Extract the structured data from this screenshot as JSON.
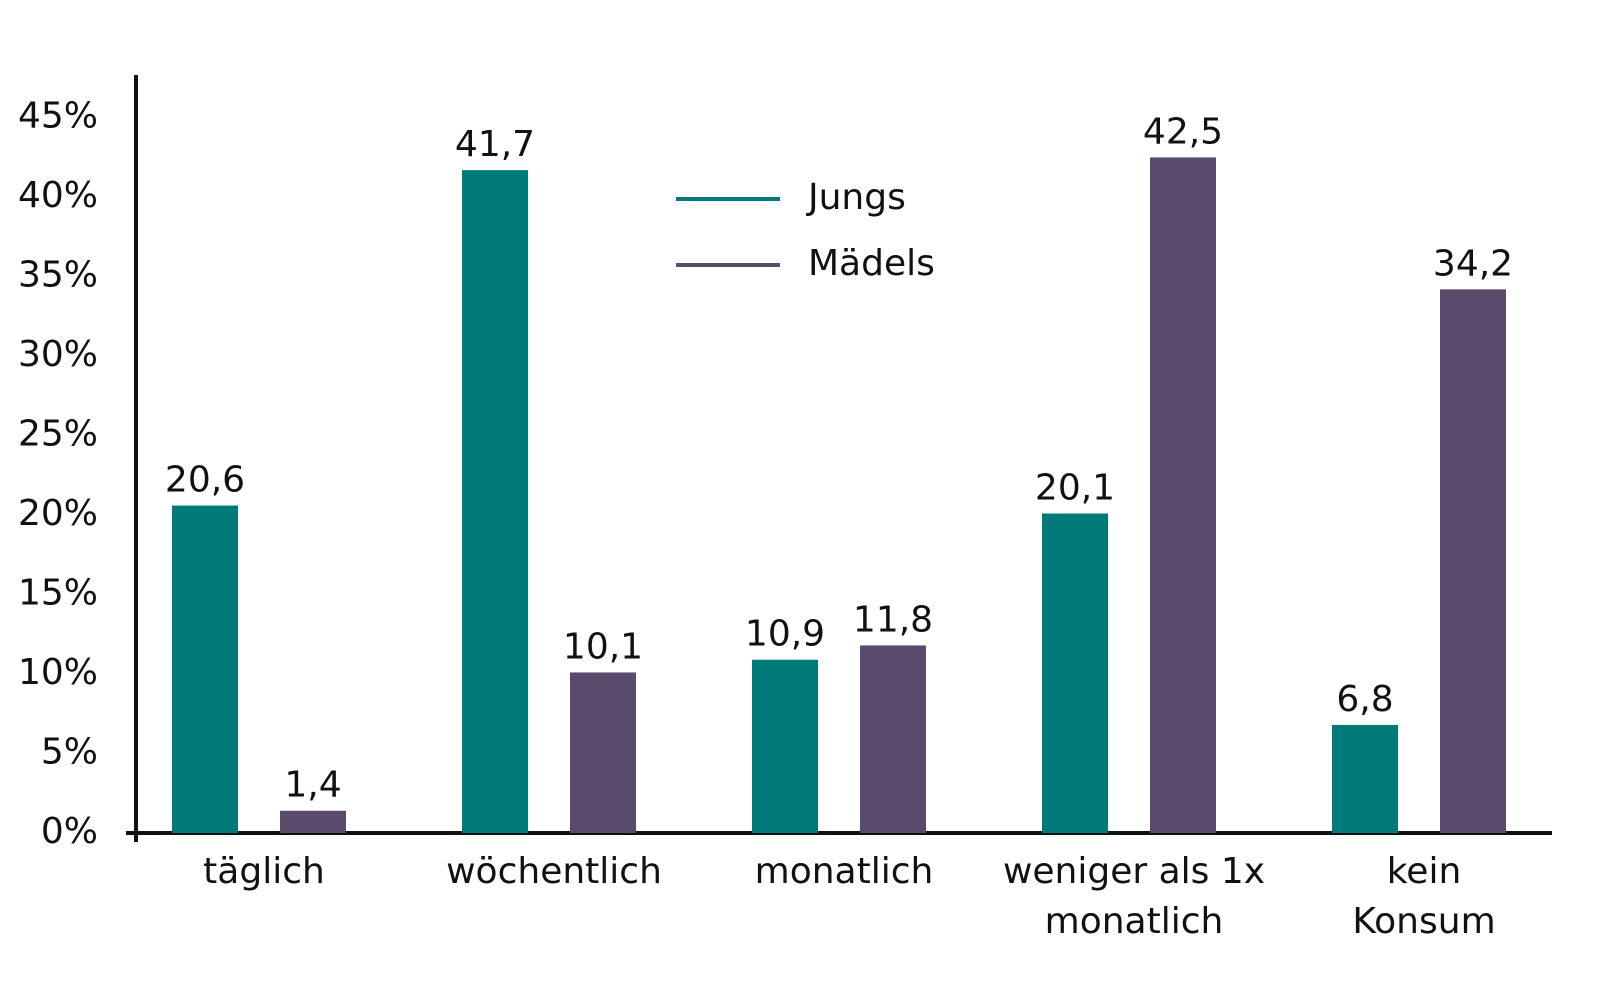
{
  "chart_data": {
    "type": "bar",
    "categories": [
      "täglich",
      "wöchentlich",
      "monatlich",
      "weniger als 1x\nmonatlich",
      "kein\nKonsum"
    ],
    "series": [
      {
        "name": "Jungs",
        "color": "#007b7a",
        "values": [
          20.6,
          41.7,
          10.9,
          20.1,
          6.8
        ],
        "value_labels": [
          "20,6",
          "41,7",
          "10,9",
          "20,1",
          "6,8"
        ]
      },
      {
        "name": "Mädels",
        "color": "#5a4a6b",
        "values": [
          1.4,
          10.1,
          11.8,
          42.5,
          34.2
        ],
        "value_labels": [
          "1,4",
          "10,1",
          "11,8",
          "42,5",
          "34,2"
        ]
      }
    ],
    "ylim": [
      0,
      48
    ],
    "yticks": [
      {
        "value": 0,
        "label": "0%"
      },
      {
        "value": 5,
        "label": "5%"
      },
      {
        "value": 10,
        "label": "10%"
      },
      {
        "value": 15,
        "label": "15%"
      },
      {
        "value": 20,
        "label": "20%"
      },
      {
        "value": 25,
        "label": "25%"
      },
      {
        "value": 30,
        "label": "30%"
      },
      {
        "value": 35,
        "label": "35%"
      },
      {
        "value": 40,
        "label": "40%"
      },
      {
        "value": 45,
        "label": "45%"
      }
    ],
    "grid": false,
    "legend": "top-center"
  }
}
